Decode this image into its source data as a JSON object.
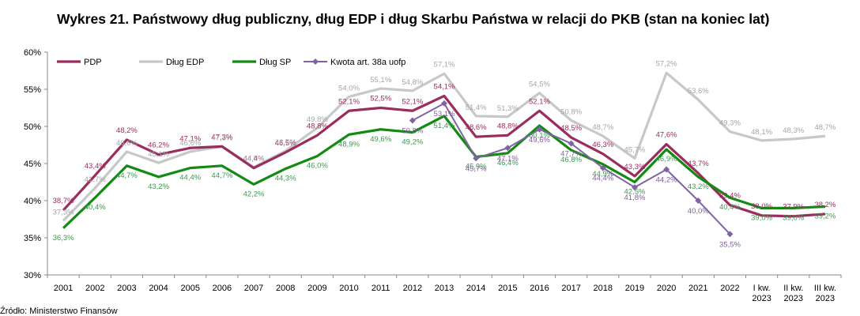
{
  "source": "Źródło: Ministerstwo Finansów",
  "chart_data": {
    "type": "line",
    "title": "Wykres 21. Państwowy dług publiczny, dług EDP i dług Skarbu Państwa w relacji do PKB (stan na koniec lat)",
    "ylim": [
      30,
      60
    ],
    "yticks": [
      "30%",
      "35%",
      "40%",
      "45%",
      "50%",
      "55%",
      "60%"
    ],
    "categories": [
      "2001",
      "2002",
      "2003",
      "2004",
      "2005",
      "2006",
      "2007",
      "2008",
      "2009",
      "2010",
      "2011",
      "2012",
      "2013",
      "2014",
      "2015",
      "2016",
      "2017",
      "2018",
      "2019",
      "2020",
      "2021",
      "2022",
      "I kw. 2023",
      "II kw. 2023",
      "III kw. 2023"
    ],
    "legend_placement": "top-left",
    "series": [
      {
        "name": "PDP",
        "color": "#9b2d5e",
        "values": [
          38.7,
          43.4,
          48.2,
          46.2,
          47.1,
          47.3,
          44.4,
          46.5,
          48.8,
          52.1,
          52.5,
          52.1,
          54.1,
          48.6,
          48.8,
          52.1,
          48.5,
          46.3,
          43.3,
          47.6,
          43.7,
          39.4,
          38.0,
          37.9,
          38.2
        ],
        "labels": [
          "38,7%",
          "43,4%",
          "48,2%",
          "46,2%",
          "47,1%",
          "47,3%",
          "44,4%",
          "46,5%",
          "48,8%",
          "52,1%",
          "52,5%",
          "52,1%",
          "54,1%",
          "48,6%",
          "48,8%",
          "52,1%",
          "48,5%",
          "46,3%",
          "43,3%",
          "47,6%",
          "43,7%",
          "39,4%",
          "38,0%",
          "37,9%",
          "38,2%"
        ]
      },
      {
        "name": "Dług EDP",
        "color": "#c8c8c8",
        "values": [
          37.3,
          41.7,
          46.6,
          45.1,
          46.6,
          47.3,
          44.5,
          46.7,
          49.8,
          54.0,
          55.1,
          54.8,
          57.1,
          51.4,
          51.3,
          54.5,
          50.8,
          48.7,
          45.7,
          57.2,
          53.6,
          49.3,
          48.1,
          48.3,
          48.7
        ],
        "labels": [
          "37,3%",
          "41,7%",
          "46,6%",
          "45,1%",
          "46,6%",
          "47,3%",
          "44,5%",
          "46,7%",
          "49,8%",
          "54,0%",
          "55,1%",
          "54,8%",
          "57,1%",
          "51,4%",
          "51,3%",
          "54,5%",
          "50,8%",
          "48,7%",
          "45,7%",
          "57,2%",
          "53,6%",
          "49,3%",
          "48,1%",
          "48,3%",
          "48,7%"
        ]
      },
      {
        "name": "Dług SP",
        "color": "#138a13",
        "values": [
          36.3,
          40.4,
          44.7,
          43.2,
          44.4,
          44.7,
          42.2,
          44.3,
          46.0,
          48.9,
          49.6,
          49.2,
          51.4,
          45.9,
          46.4,
          50.1,
          46.8,
          44.9,
          42.5,
          46.9,
          43.2,
          40.4,
          39.0,
          39.0,
          39.2
        ],
        "labels": [
          "36,3%",
          "40,4%",
          "44,7%",
          "43,2%",
          "44,4%",
          "44,7%",
          "42,2%",
          "44,3%",
          "46,0%",
          "48,9%",
          "49,6%",
          "49,2%",
          "51,4%",
          "45,9%",
          "46,4%",
          "50,1%",
          "46,8%",
          "44,9%",
          "42,5%",
          "46,9%",
          "43,2%",
          "40,4%",
          "39,0%",
          "39,0%",
          "39,2%"
        ]
      },
      {
        "name": "Kwota art. 38a uofp",
        "color": "#8064a2",
        "values": [
          null,
          null,
          null,
          null,
          null,
          null,
          null,
          null,
          null,
          null,
          null,
          50.8,
          53.1,
          45.7,
          47.1,
          49.6,
          47.7,
          44.4,
          41.8,
          44.2,
          40.0,
          35.5,
          null,
          null,
          null
        ],
        "labels": [
          "",
          "",
          "",
          "",
          "",
          "",
          "",
          "",
          "",
          "",
          "",
          "50,8%",
          "53,1%",
          "45,7%",
          "47,1%",
          "49,6%",
          "47,7%",
          "44,4%",
          "41,8%",
          "44,2%",
          "40,0%",
          "35,5%",
          "",
          "",
          ""
        ]
      }
    ]
  }
}
